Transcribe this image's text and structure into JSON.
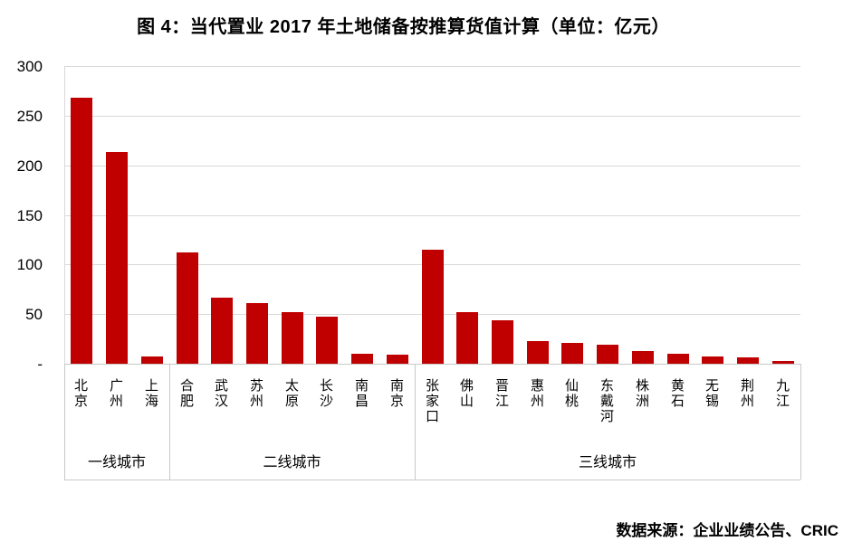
{
  "title": "图 4：当代置业 2017 年土地储备按推算货值计算（单位：亿元）",
  "source": "数据来源：企业业绩公告、CRIC",
  "colors": {
    "bar": "#C00000",
    "gridline": "#D9D9D9",
    "axis_border": "#C8C8C8",
    "text": "#000000"
  },
  "chart_data": {
    "type": "bar",
    "title": "图 4：当代置业 2017 年土地储备按推算货值计算（单位：亿元）",
    "xlabel": "",
    "ylabel": "",
    "unit": "亿元",
    "ylim": [
      0,
      300
    ],
    "ytick_interval": 50,
    "ytick_labels": [
      "-",
      "50",
      "100",
      "150",
      "200",
      "250",
      "300"
    ],
    "grid": true,
    "legend": false,
    "groups": [
      {
        "label": "一线城市",
        "cities": [
          "北京",
          "广州",
          "上海"
        ],
        "values": [
          268,
          213,
          7
        ]
      },
      {
        "label": "二线城市",
        "cities": [
          "合肥",
          "武汉",
          "苏州",
          "太原",
          "长沙",
          "南昌",
          "南京"
        ],
        "values": [
          112,
          67,
          61,
          52,
          47,
          10,
          9
        ]
      },
      {
        "label": "三线城市",
        "cities": [
          "张家口",
          "佛山",
          "晋江",
          "惠州",
          "仙桃",
          "东戴河",
          "株洲",
          "黄石",
          "无锡",
          "荆州",
          "九江"
        ],
        "values": [
          115,
          52,
          44,
          23,
          21,
          19,
          13,
          10,
          7,
          6,
          3
        ]
      }
    ]
  }
}
